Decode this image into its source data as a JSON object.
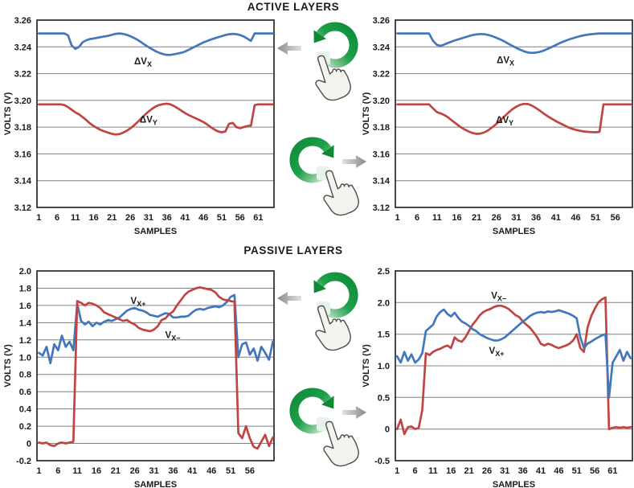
{
  "titles": {
    "active": "ACTIVE LAYERS",
    "passive": "PASSIVE LAYERS"
  },
  "icons": {
    "rotate_ccw": "rotate-counterclockwise-arrow-icon",
    "rotate_cw": "rotate-clockwise-arrow-icon",
    "arrow_left": "arrow-left-icon",
    "arrow_right": "arrow-right-icon",
    "hand": "pointing-hand-icon"
  },
  "colors": {
    "blue": "#4377BD",
    "red": "#C04441",
    "grid": "#808080",
    "axis": "#1a1a1a",
    "green": "#1E9C45",
    "green_dark": "#0E8A37",
    "green_pale": "#E2F1E4",
    "gray_arrow_dark": "#8a8a8a",
    "gray_arrow_light": "#e0e0e0"
  },
  "chart_data": [
    {
      "id": "active-left",
      "type": "line",
      "section": "ACTIVE LAYERS",
      "xlabel": "SAMPLES",
      "ylabel": "VOLTS (V)",
      "xlim": [
        0.5,
        65.3
      ],
      "ylim": [
        3.12,
        3.26
      ],
      "xticks": [
        1,
        6,
        11,
        16,
        21,
        26,
        31,
        36,
        41,
        46,
        51,
        56,
        61
      ],
      "yticks": [
        {
          "v": 3.26,
          "t": "3.26"
        },
        {
          "v": 3.24,
          "t": "3.24"
        },
        {
          "v": 3.22,
          "t": "3.22"
        },
        {
          "v": 3.2,
          "t": "3.20"
        },
        {
          "v": 3.18,
          "t": "3.18"
        },
        {
          "v": 3.16,
          "t": "3.16"
        },
        {
          "v": 3.14,
          "t": "3.14"
        },
        {
          "v": 3.12,
          "t": "3.12"
        }
      ],
      "grid": true,
      "legend_position": "inline-labels",
      "series": [
        {
          "name": "dVX",
          "color": "blue",
          "label": {
            "main": "ΔV",
            "sub": "X",
            "x": 29.5,
            "y": 3.227
          },
          "values": [
            3.25,
            3.25,
            3.25,
            3.25,
            3.25,
            3.25,
            3.25,
            3.25,
            3.2485,
            3.241,
            3.2385,
            3.24,
            3.2435,
            3.245,
            3.2458,
            3.2463,
            3.2468,
            3.2473,
            3.2478,
            3.2483,
            3.249,
            3.2497,
            3.25,
            3.2497,
            3.249,
            3.248,
            3.2467,
            3.2452,
            3.2435,
            3.2415,
            3.2398,
            3.2382,
            3.2367,
            3.2355,
            3.2346,
            3.234,
            3.234,
            3.2345,
            3.235,
            3.2356,
            3.2365,
            3.2378,
            3.2392,
            3.2406,
            3.242,
            3.2433,
            3.2444,
            3.2454,
            3.2463,
            3.2472,
            3.248,
            3.2488,
            3.2494,
            3.2497,
            3.2495,
            3.2488,
            3.2478,
            3.2462,
            3.2445,
            3.25,
            3.25,
            3.25,
            3.25,
            3.25,
            3.25
          ]
        },
        {
          "name": "dVY",
          "color": "red",
          "label": {
            "main": "ΔV",
            "sub": "Y",
            "x": 31,
            "y": 3.1835
          },
          "values": [
            3.197,
            3.197,
            3.197,
            3.197,
            3.197,
            3.197,
            3.197,
            3.1965,
            3.195,
            3.193,
            3.191,
            3.1895,
            3.1875,
            3.1852,
            3.1828,
            3.1808,
            3.1792,
            3.1778,
            3.1768,
            3.1758,
            3.175,
            3.1745,
            3.1748,
            3.1758,
            3.1772,
            3.179,
            3.1812,
            3.1838,
            3.1865,
            3.1892,
            3.1917,
            3.1938,
            3.1955,
            3.1966,
            3.1972,
            3.1975,
            3.197,
            3.1957,
            3.194,
            3.1922,
            3.1905,
            3.189,
            3.1877,
            3.1865,
            3.1852,
            3.1838,
            3.182,
            3.18,
            3.1782,
            3.1768,
            3.1762,
            3.1768,
            3.1825,
            3.1832,
            3.18,
            3.1792,
            3.18,
            3.1808,
            3.1812,
            3.1965,
            3.197,
            3.197,
            3.197,
            3.197,
            3.197
          ]
        }
      ]
    },
    {
      "id": "active-right",
      "type": "line",
      "section": "ACTIVE LAYERS",
      "xlabel": "SAMPLES",
      "ylabel": "VOLTS (V)",
      "xlim": [
        0.5,
        60.3
      ],
      "ylim": [
        3.12,
        3.26
      ],
      "xticks": [
        1,
        6,
        11,
        16,
        21,
        26,
        31,
        36,
        41,
        46,
        51,
        56
      ],
      "yticks": [
        {
          "v": 3.26,
          "t": "3.26"
        },
        {
          "v": 3.24,
          "t": "3.24"
        },
        {
          "v": 3.22,
          "t": "3.22"
        },
        {
          "v": 3.2,
          "t": "3.20"
        },
        {
          "v": 3.18,
          "t": "3.18"
        },
        {
          "v": 3.16,
          "t": "3.16"
        },
        {
          "v": 3.14,
          "t": "3.14"
        },
        {
          "v": 3.12,
          "t": "3.12"
        }
      ],
      "grid": true,
      "legend_position": "inline-labels",
      "series": [
        {
          "name": "dVX",
          "color": "blue",
          "label": {
            "main": "ΔV",
            "sub": "X",
            "x": 28.3,
            "y": 3.228
          },
          "values": [
            3.25,
            3.25,
            3.25,
            3.25,
            3.25,
            3.25,
            3.25,
            3.25,
            3.25,
            3.2445,
            3.2415,
            3.2408,
            3.242,
            3.2432,
            3.2443,
            3.2453,
            3.2462,
            3.2471,
            3.248,
            3.2488,
            3.2493,
            3.2496,
            3.2494,
            3.2488,
            3.2479,
            3.2468,
            3.2455,
            3.244,
            3.2424,
            3.2408,
            3.2392,
            3.2378,
            3.2366,
            3.2358,
            3.2355,
            3.2357,
            3.2363,
            3.2373,
            3.2386,
            3.24,
            3.2414,
            3.2428,
            3.2441,
            3.2452,
            3.2462,
            3.2471,
            3.2479,
            3.2486,
            3.2491,
            3.2495,
            3.2498,
            3.25,
            3.25,
            3.25,
            3.25,
            3.25,
            3.25,
            3.25,
            3.25,
            3.25
          ]
        },
        {
          "name": "dVY",
          "color": "red",
          "label": {
            "main": "ΔV",
            "sub": "Y",
            "x": 28.1,
            "y": 3.183
          },
          "values": [
            3.197,
            3.197,
            3.197,
            3.197,
            3.197,
            3.197,
            3.197,
            3.197,
            3.197,
            3.194,
            3.1912,
            3.1902,
            3.1888,
            3.1868,
            3.1845,
            3.1822,
            3.18,
            3.1782,
            3.1767,
            3.1756,
            3.175,
            3.1752,
            3.1762,
            3.1778,
            3.18,
            3.1825,
            3.1852,
            3.188,
            3.1908,
            3.1933,
            3.1953,
            3.1967,
            3.1974,
            3.1972,
            3.196,
            3.1942,
            3.1922,
            3.19,
            3.188,
            3.1862,
            3.1845,
            3.183,
            3.1815,
            3.18,
            3.1788,
            3.178,
            3.1773,
            3.1768,
            3.1765,
            3.1763,
            3.1762,
            3.1765,
            3.197,
            3.197,
            3.197,
            3.197,
            3.197,
            3.197,
            3.197,
            3.197
          ]
        }
      ]
    },
    {
      "id": "passive-left",
      "type": "line",
      "section": "PASSIVE LAYERS",
      "xlabel": "SAMPLES",
      "ylabel": "VOLTS (V)",
      "xlim": [
        0.5,
        62.3
      ],
      "ylim": [
        -0.2,
        2.0
      ],
      "xticks": [
        1,
        6,
        11,
        16,
        21,
        26,
        31,
        36,
        41,
        46,
        51,
        56
      ],
      "yticks": [
        {
          "v": 2.0,
          "t": "2.0"
        },
        {
          "v": 1.8,
          "t": "1.8"
        },
        {
          "v": 1.6,
          "t": "1.6"
        },
        {
          "v": 1.4,
          "t": "1.4"
        },
        {
          "v": 1.2,
          "t": "1.2"
        },
        {
          "v": 1.0,
          "t": "1.0"
        },
        {
          "v": 0.8,
          "t": "0.8"
        },
        {
          "v": 0.6,
          "t": "0.6"
        },
        {
          "v": 0.4,
          "t": "0.4"
        },
        {
          "v": 0.2,
          "t": "0.2"
        },
        {
          "v": 0.0,
          "t": "0"
        },
        {
          "v": -0.2,
          "t": "-0.2"
        }
      ],
      "grid": true,
      "legend_position": "inline-labels",
      "series": [
        {
          "name": "VX+",
          "color": "blue",
          "label": {
            "main": "V",
            "sub": "X+",
            "x": 26.9,
            "y": 1.62
          },
          "values": [
            1.05,
            1.02,
            1.12,
            0.93,
            1.15,
            1.08,
            1.25,
            1.12,
            1.18,
            1.08,
            1.62,
            1.42,
            1.38,
            1.41,
            1.36,
            1.4,
            1.38,
            1.41,
            1.43,
            1.42,
            1.44,
            1.46,
            1.5,
            1.54,
            1.56,
            1.57,
            1.55,
            1.54,
            1.52,
            1.49,
            1.48,
            1.47,
            1.49,
            1.51,
            1.5,
            1.46,
            1.46,
            1.47,
            1.47,
            1.48,
            1.52,
            1.55,
            1.56,
            1.55,
            1.57,
            1.58,
            1.59,
            1.58,
            1.6,
            1.64,
            1.7,
            1.72,
            1.0,
            1.15,
            1.17,
            1.03,
            1.1,
            0.96,
            1.12,
            1.05,
            0.97,
            1.18
          ]
        },
        {
          "name": "VX-",
          "color": "red",
          "label": {
            "main": "V",
            "sub": "X−",
            "x": 35.9,
            "y": 1.22
          },
          "values": [
            0.01,
            0.0,
            0.01,
            -0.02,
            -0.03,
            0.0,
            0.01,
            0.0,
            0.01,
            0.02,
            1.65,
            1.63,
            1.6,
            1.63,
            1.62,
            1.6,
            1.57,
            1.52,
            1.5,
            1.48,
            1.46,
            1.44,
            1.42,
            1.43,
            1.4,
            1.38,
            1.34,
            1.32,
            1.31,
            1.3,
            1.32,
            1.36,
            1.43,
            1.45,
            1.5,
            1.53,
            1.6,
            1.66,
            1.72,
            1.76,
            1.78,
            1.8,
            1.81,
            1.8,
            1.79,
            1.78,
            1.75,
            1.7,
            1.67,
            1.66,
            1.65,
            1.64,
            0.12,
            0.06,
            0.2,
            0.06,
            -0.04,
            -0.06,
            0.02,
            0.1,
            -0.03,
            0.07
          ]
        }
      ]
    },
    {
      "id": "passive-right",
      "type": "line",
      "section": "PASSIVE LAYERS",
      "xlabel": "SAMPLES",
      "ylabel": "VOLTS (V)",
      "xlim": [
        0.5,
        66.5
      ],
      "ylim": [
        -0.5,
        2.5
      ],
      "xticks": [
        1,
        6,
        11,
        16,
        21,
        26,
        31,
        36,
        41,
        46,
        51,
        56,
        61
      ],
      "yticks": [
        {
          "v": 2.5,
          "t": "2.5"
        },
        {
          "v": 2.0,
          "t": "2.0"
        },
        {
          "v": 1.5,
          "t": "1.5"
        },
        {
          "v": 1.0,
          "t": "1.0"
        },
        {
          "v": 0.5,
          "t": "0.5"
        },
        {
          "v": 0.0,
          "t": "0"
        },
        {
          "v": -0.5,
          "t": "-0.5"
        }
      ],
      "grid": true,
      "legend_position": "inline-labels",
      "series": [
        {
          "name": "VX-",
          "color": "red",
          "label": {
            "main": "V",
            "sub": "X−",
            "x": 29.3,
            "y": 2.06
          },
          "values": [
            0.0,
            0.15,
            -0.08,
            0.03,
            0.04,
            0.0,
            0.02,
            0.3,
            1.2,
            1.17,
            1.22,
            1.25,
            1.27,
            1.3,
            1.32,
            1.28,
            1.45,
            1.4,
            1.38,
            1.45,
            1.55,
            1.65,
            1.72,
            1.8,
            1.85,
            1.88,
            1.9,
            1.93,
            1.95,
            1.95,
            1.93,
            1.9,
            1.85,
            1.8,
            1.77,
            1.7,
            1.65,
            1.6,
            1.53,
            1.45,
            1.35,
            1.32,
            1.35,
            1.33,
            1.3,
            1.28,
            1.3,
            1.32,
            1.35,
            1.4,
            1.5,
            1.28,
            1.22,
            1.6,
            1.78,
            1.9,
            2.0,
            2.05,
            2.08,
            0.0,
            0.02,
            0.03,
            0.02,
            0.03,
            0.02,
            0.03
          ]
        },
        {
          "name": "VX+",
          "color": "blue",
          "label": {
            "main": "V",
            "sub": "X+",
            "x": 28.7,
            "y": 1.19
          },
          "values": [
            1.15,
            1.05,
            1.22,
            1.08,
            1.18,
            1.05,
            1.1,
            1.2,
            1.55,
            1.6,
            1.65,
            1.78,
            1.85,
            1.89,
            1.82,
            1.78,
            1.84,
            1.76,
            1.7,
            1.67,
            1.63,
            1.58,
            1.55,
            1.5,
            1.47,
            1.44,
            1.42,
            1.4,
            1.4,
            1.42,
            1.45,
            1.5,
            1.55,
            1.6,
            1.65,
            1.7,
            1.74,
            1.79,
            1.82,
            1.84,
            1.85,
            1.84,
            1.86,
            1.85,
            1.86,
            1.88,
            1.86,
            1.84,
            1.82,
            1.79,
            1.75,
            1.45,
            1.28,
            1.35,
            1.38,
            1.42,
            1.45,
            1.48,
            1.5,
            0.5,
            1.05,
            1.15,
            1.25,
            1.08,
            1.22,
            1.12
          ]
        }
      ]
    }
  ]
}
